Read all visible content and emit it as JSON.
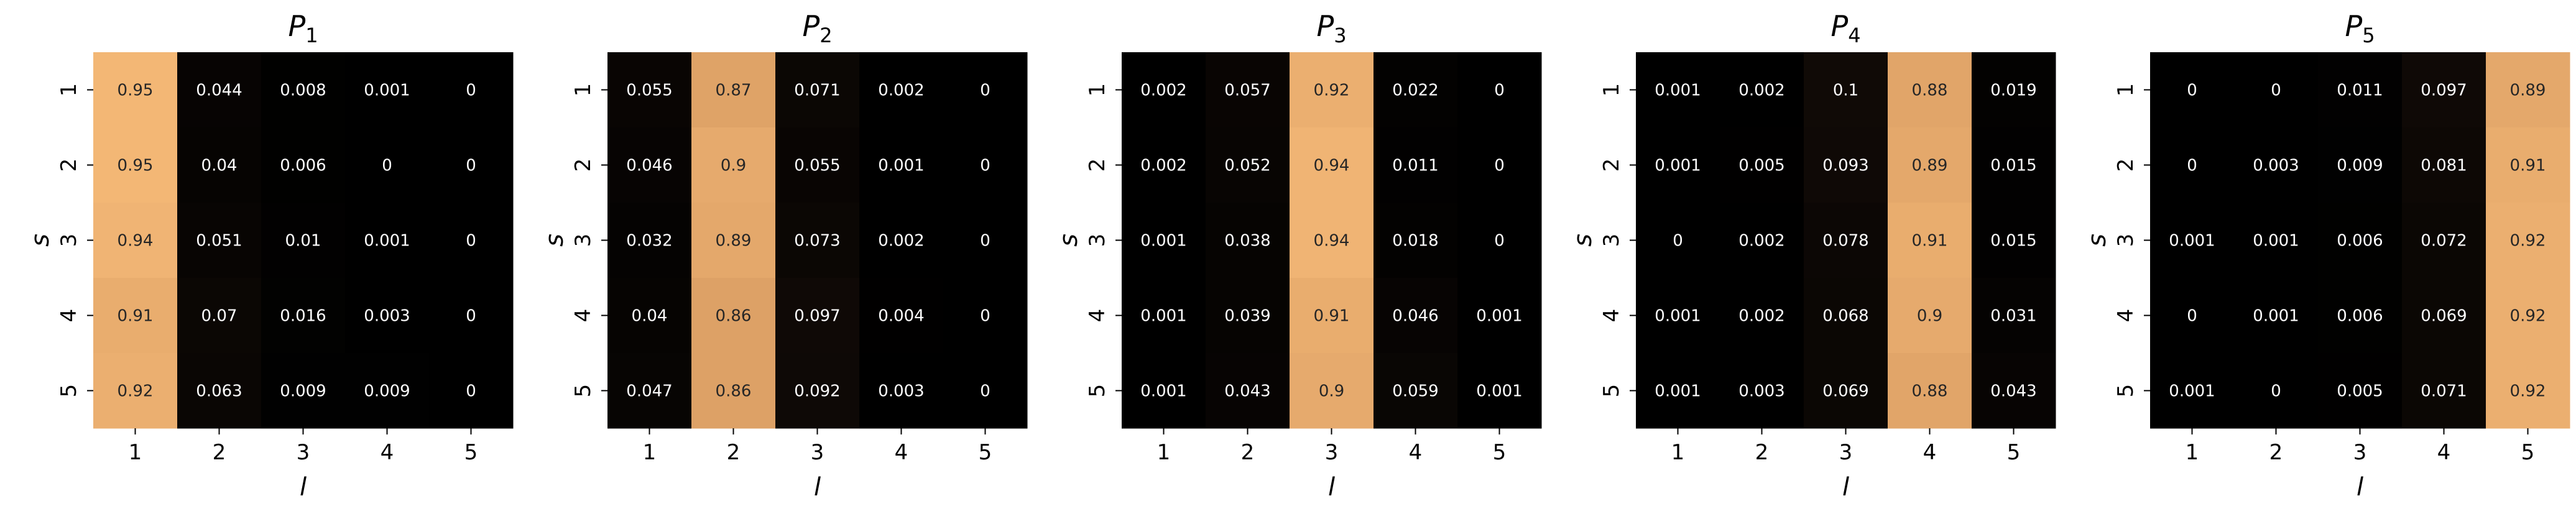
{
  "chart_data": [
    {
      "type": "heatmap",
      "title": "P",
      "title_sub": "1",
      "xlabel": "l",
      "ylabel": "s",
      "x_categories": [
        "1",
        "2",
        "3",
        "4",
        "5"
      ],
      "y_categories": [
        "1",
        "2",
        "3",
        "4",
        "5"
      ],
      "values": [
        [
          0.95,
          0.044,
          0.008,
          0.001,
          0
        ],
        [
          0.95,
          0.04,
          0.006,
          0,
          0
        ],
        [
          0.94,
          0.051,
          0.01,
          0.001,
          0
        ],
        [
          0.91,
          0.07,
          0.016,
          0.003,
          0
        ],
        [
          0.92,
          0.063,
          0.009,
          0.009,
          0
        ]
      ]
    },
    {
      "type": "heatmap",
      "title": "P",
      "title_sub": "2",
      "xlabel": "l",
      "ylabel": "s",
      "x_categories": [
        "1",
        "2",
        "3",
        "4",
        "5"
      ],
      "y_categories": [
        "1",
        "2",
        "3",
        "4",
        "5"
      ],
      "values": [
        [
          0.055,
          0.87,
          0.071,
          0.002,
          0
        ],
        [
          0.046,
          0.9,
          0.055,
          0.001,
          0
        ],
        [
          0.032,
          0.89,
          0.073,
          0.002,
          0
        ],
        [
          0.04,
          0.86,
          0.097,
          0.004,
          0
        ],
        [
          0.047,
          0.86,
          0.092,
          0.003,
          0
        ]
      ]
    },
    {
      "type": "heatmap",
      "title": "P",
      "title_sub": "3",
      "xlabel": "l",
      "ylabel": "s",
      "x_categories": [
        "1",
        "2",
        "3",
        "4",
        "5"
      ],
      "y_categories": [
        "1",
        "2",
        "3",
        "4",
        "5"
      ],
      "values": [
        [
          0.002,
          0.057,
          0.92,
          0.022,
          0
        ],
        [
          0.002,
          0.052,
          0.94,
          0.011,
          0
        ],
        [
          0.001,
          0.038,
          0.94,
          0.018,
          0
        ],
        [
          0.001,
          0.039,
          0.91,
          0.046,
          0.001
        ],
        [
          0.001,
          0.043,
          0.9,
          0.059,
          0.001
        ]
      ]
    },
    {
      "type": "heatmap",
      "title": "P",
      "title_sub": "4",
      "xlabel": "l",
      "ylabel": "s",
      "x_categories": [
        "1",
        "2",
        "3",
        "4",
        "5"
      ],
      "y_categories": [
        "1",
        "2",
        "3",
        "4",
        "5"
      ],
      "values": [
        [
          0.001,
          0.002,
          0.1,
          0.88,
          0.019
        ],
        [
          0.001,
          0.005,
          0.093,
          0.89,
          0.015
        ],
        [
          0,
          0.002,
          0.078,
          0.91,
          0.015
        ],
        [
          0.001,
          0.002,
          0.068,
          0.9,
          0.031
        ],
        [
          0.001,
          0.003,
          0.069,
          0.88,
          0.043
        ]
      ]
    },
    {
      "type": "heatmap",
      "title": "P",
      "title_sub": "5",
      "xlabel": "l",
      "ylabel": "s",
      "x_categories": [
        "1",
        "2",
        "3",
        "4",
        "5"
      ],
      "y_categories": [
        "1",
        "2",
        "3",
        "4",
        "5"
      ],
      "values": [
        [
          0,
          0,
          0.011,
          0.097,
          0.89
        ],
        [
          0,
          0.003,
          0.009,
          0.081,
          0.91
        ],
        [
          0.001,
          0.001,
          0.006,
          0.072,
          0.92
        ],
        [
          0,
          0.001,
          0.006,
          0.069,
          0.92
        ],
        [
          0.001,
          0,
          0.005,
          0.071,
          0.92
        ]
      ]
    }
  ],
  "colormap": [
    "#000000",
    "#1a100a",
    "#3d2516",
    "#6a4127",
    "#9c6340",
    "#d69a61",
    "#ffc37e"
  ]
}
